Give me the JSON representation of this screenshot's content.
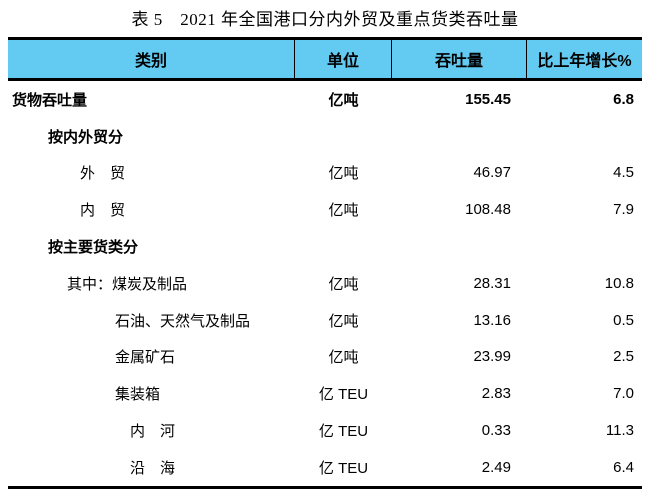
{
  "title": "表 5　2021 年全国港口分内外贸及重点货类吞吐量",
  "table": {
    "header_bg": "#63cbf1",
    "headers": {
      "category": "类别",
      "unit": "单位",
      "throughput": "吞吐量",
      "growth": "比上年增长%"
    },
    "rows": [
      {
        "label": "货物吞吐量",
        "unit": "亿吨",
        "value": "155.45",
        "growth": "6.8"
      },
      {
        "label": "按内外贸分",
        "unit": "",
        "value": "",
        "growth": ""
      },
      {
        "label": "外　贸",
        "unit": "亿吨",
        "value": "46.97",
        "growth": "4.5"
      },
      {
        "label": "内　贸",
        "unit": "亿吨",
        "value": "108.48",
        "growth": "7.9"
      },
      {
        "label": "按主要货类分",
        "unit": "",
        "value": "",
        "growth": ""
      },
      {
        "label": "其中：煤炭及制品",
        "unit": "亿吨",
        "value": "28.31",
        "growth": "10.8"
      },
      {
        "label": "石油、天然气及制品",
        "unit": "亿吨",
        "value": "13.16",
        "growth": "0.5"
      },
      {
        "label": "金属矿石",
        "unit": "亿吨",
        "value": "23.99",
        "growth": "2.5"
      },
      {
        "label": "集装箱",
        "unit": "亿 TEU",
        "value": "2.83",
        "growth": "7.0"
      },
      {
        "label": "内　河",
        "unit": "亿 TEU",
        "value": "0.33",
        "growth": "11.3"
      },
      {
        "label": "沿　海",
        "unit": "亿 TEU",
        "value": "2.49",
        "growth": "6.4"
      }
    ]
  }
}
